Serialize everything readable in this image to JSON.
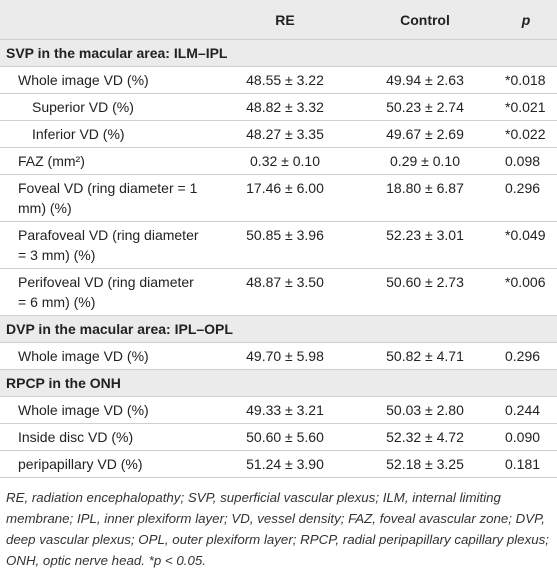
{
  "table": {
    "header": [
      "RE",
      "Control",
      "p"
    ],
    "sections": [
      {
        "title": "SVP in the macular area: ILM–IPL",
        "rows": [
          [
            "Whole image VD (%)",
            "48.55 ± 3.22",
            "49.94 ± 2.63",
            "*0.018"
          ],
          [
            "Superior VD (%)",
            "48.82 ± 3.32",
            "50.23 ± 2.74",
            "*0.021"
          ],
          [
            "Inferior VD (%)",
            "48.27 ± 3.35",
            "49.67 ± 2.69",
            "*0.022"
          ],
          [
            "FAZ (mm²)",
            "0.32 ± 0.10",
            "0.29 ± 0.10",
            "0.098"
          ],
          [
            "Foveal VD (ring diameter = 1 mm) (%)",
            "17.46 ± 6.00",
            "18.80 ± 6.87",
            "0.296"
          ],
          [
            "Parafoveal VD (ring diameter = 3 mm) (%)",
            "50.85 ± 3.96",
            "52.23 ± 3.01",
            "*0.049"
          ],
          [
            "Perifoveal VD (ring diameter = 6 mm) (%)",
            "48.87 ± 3.50",
            "50.60 ± 2.73",
            "*0.006"
          ]
        ]
      },
      {
        "title": "DVP in the macular area: IPL–OPL",
        "rows": [
          [
            "Whole image VD (%)",
            "49.70 ± 5.98",
            "50.82 ± 4.71",
            "0.296"
          ]
        ]
      },
      {
        "title": "RPCP in the ONH",
        "rows": [
          [
            "Whole image VD (%)",
            "49.33 ± 3.21",
            "50.03 ± 2.80",
            "0.244"
          ],
          [
            "Inside disc VD (%)",
            "50.60 ± 5.60",
            "52.32 ± 4.72",
            "0.090"
          ],
          [
            "peripapillary VD (%)",
            "51.24 ± 3.90",
            "52.18 ± 3.25",
            "0.181"
          ]
        ]
      }
    ],
    "footnote": "RE, radiation encephalopathy; SVP, superficial vascular plexus; ILM, internal limiting membrane; IPL, inner plexiform layer; VD, vessel density; FAZ, foveal avascular zone; DVP, deep vascular plexus; OPL, outer plexiform layer; RPCP, radial peripapillary capillary plexus; ONH, optic nerve head. *p < 0.05."
  }
}
